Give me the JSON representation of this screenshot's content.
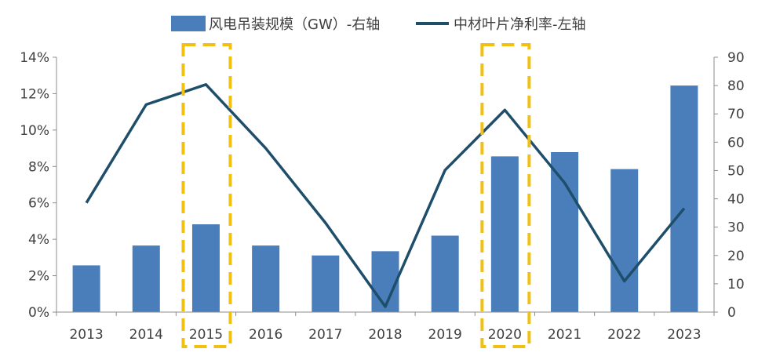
{
  "chart_data": {
    "type": "bar+line",
    "categories": [
      "2013",
      "2014",
      "2015",
      "2016",
      "2017",
      "2018",
      "2019",
      "2020",
      "2021",
      "2022",
      "2023"
    ],
    "series": [
      {
        "name": "风电吊装规模（GW）-右轴",
        "type": "bar",
        "axis": "right",
        "values": [
          16.5,
          23.5,
          31,
          23.5,
          20,
          21.5,
          27,
          55,
          56.5,
          50.5,
          80
        ],
        "color": "#4a7ebb"
      },
      {
        "name": "中材叶片净利率-左轴",
        "type": "line",
        "axis": "left",
        "values": [
          6.0,
          11.4,
          12.5,
          9.0,
          4.9,
          0.3,
          7.8,
          11.1,
          7.1,
          1.7,
          5.7
        ],
        "color": "#1f4e6b"
      }
    ],
    "left_axis": {
      "ticks": [
        "0%",
        "2%",
        "4%",
        "6%",
        "8%",
        "10%",
        "12%",
        "14%"
      ],
      "min": 0,
      "max": 14,
      "step": 2
    },
    "right_axis": {
      "ticks": [
        "0",
        "10",
        "20",
        "30",
        "40",
        "50",
        "60",
        "70",
        "80",
        "90"
      ],
      "min": 0,
      "max": 90,
      "step": 10
    },
    "highlights": [
      "2015",
      "2020"
    ],
    "highlight_color": "#f2c010",
    "legend_position": "top-center",
    "grid": false
  }
}
